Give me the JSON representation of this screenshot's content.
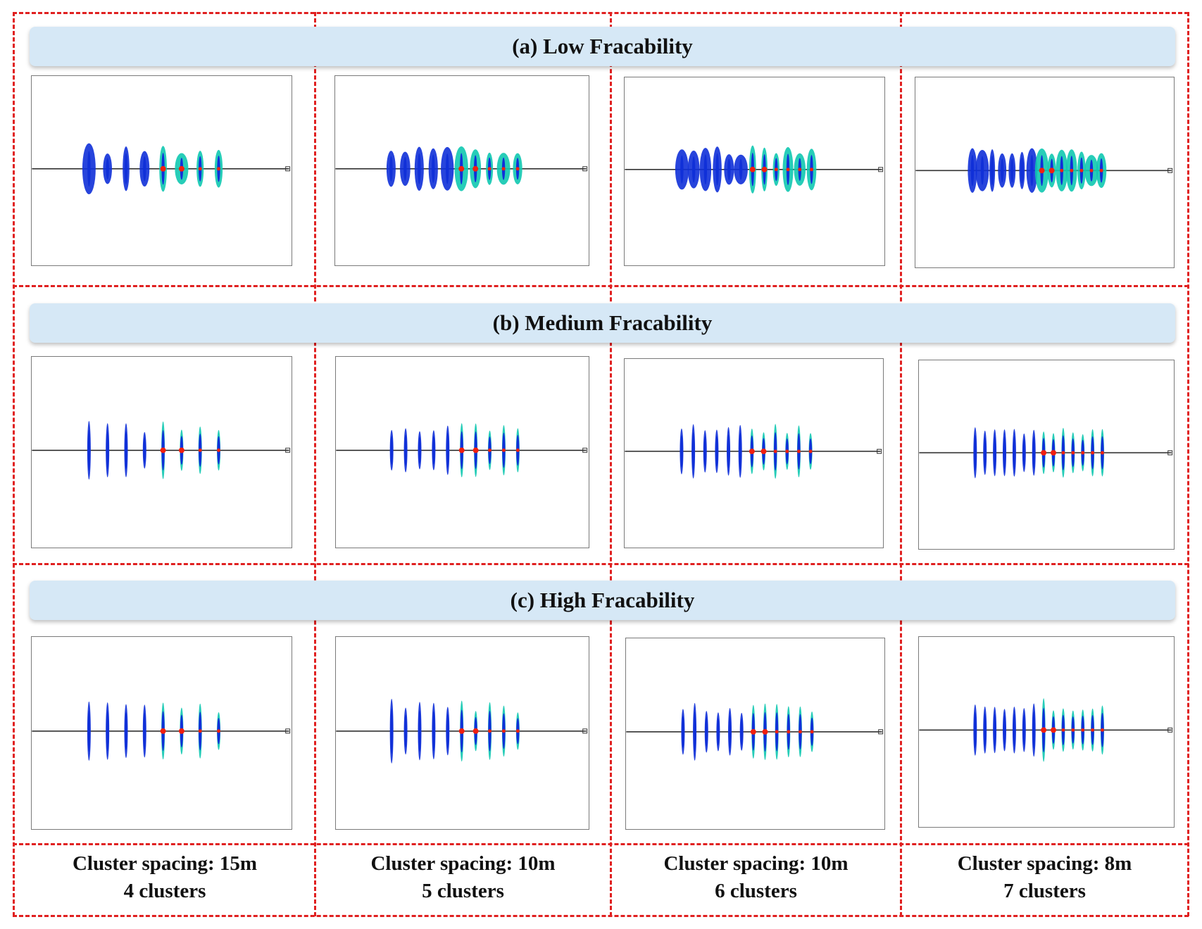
{
  "rows": [
    {
      "title": "(a) Low Fracability"
    },
    {
      "title": "(b) Medium Fracability"
    },
    {
      "title": "(c) High Fracability"
    }
  ],
  "columns": [
    {
      "spacing": "Cluster spacing: 15m",
      "clusters": "4 clusters"
    },
    {
      "spacing": "Cluster spacing: 10m",
      "clusters": "5 clusters"
    },
    {
      "spacing": "Cluster spacing: 10m",
      "clusters": "6 clusters"
    },
    {
      "spacing": "Cluster spacing: 8m",
      "clusters": "7 clusters"
    }
  ],
  "colors": {
    "frame": "#e02020",
    "banner": "#d6e8f6",
    "wellbore": "#333333",
    "fracture_low": "#1030d8",
    "fracture_mid": "#10c8b0",
    "fracture_high": "#f02010"
  }
}
